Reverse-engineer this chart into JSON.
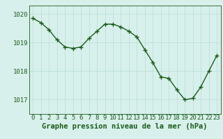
{
  "x": [
    0,
    1,
    2,
    3,
    4,
    5,
    6,
    7,
    8,
    9,
    10,
    11,
    12,
    13,
    14,
    15,
    16,
    17,
    18,
    19,
    20,
    21,
    22,
    23
  ],
  "y": [
    1019.85,
    1019.7,
    1019.45,
    1019.1,
    1018.85,
    1018.8,
    1018.85,
    1019.15,
    1019.4,
    1019.65,
    1019.65,
    1019.55,
    1019.4,
    1019.2,
    1018.75,
    1018.3,
    1017.8,
    1017.75,
    1017.35,
    1017.0,
    1017.05,
    1017.45,
    1018.0,
    1018.55
  ],
  "line_color": "#1a5c1a",
  "marker_color": "#1a5c1a",
  "bg_color": "#d8f0ec",
  "grid_color": "#b8dcd4",
  "xlabel": "Graphe pression niveau de la mer (hPa)",
  "xlabel_color": "#1a5c1a",
  "ylabel_ticks": [
    1017,
    1018,
    1019,
    1020
  ],
  "xtick_labels": [
    "0",
    "1",
    "2",
    "3",
    "4",
    "5",
    "6",
    "7",
    "8",
    "9",
    "10",
    "11",
    "12",
    "13",
    "14",
    "15",
    "16",
    "17",
    "18",
    "19",
    "20",
    "21",
    "22",
    "23"
  ],
  "ylim": [
    1016.5,
    1020.3
  ],
  "xlim": [
    -0.5,
    23.5
  ],
  "tick_color": "#1a5c1a",
  "spine_color": "#1a5c1a",
  "marker_size": 4,
  "line_width": 1.0,
  "xlabel_fontsize": 7.5,
  "tick_fontsize": 6.5
}
